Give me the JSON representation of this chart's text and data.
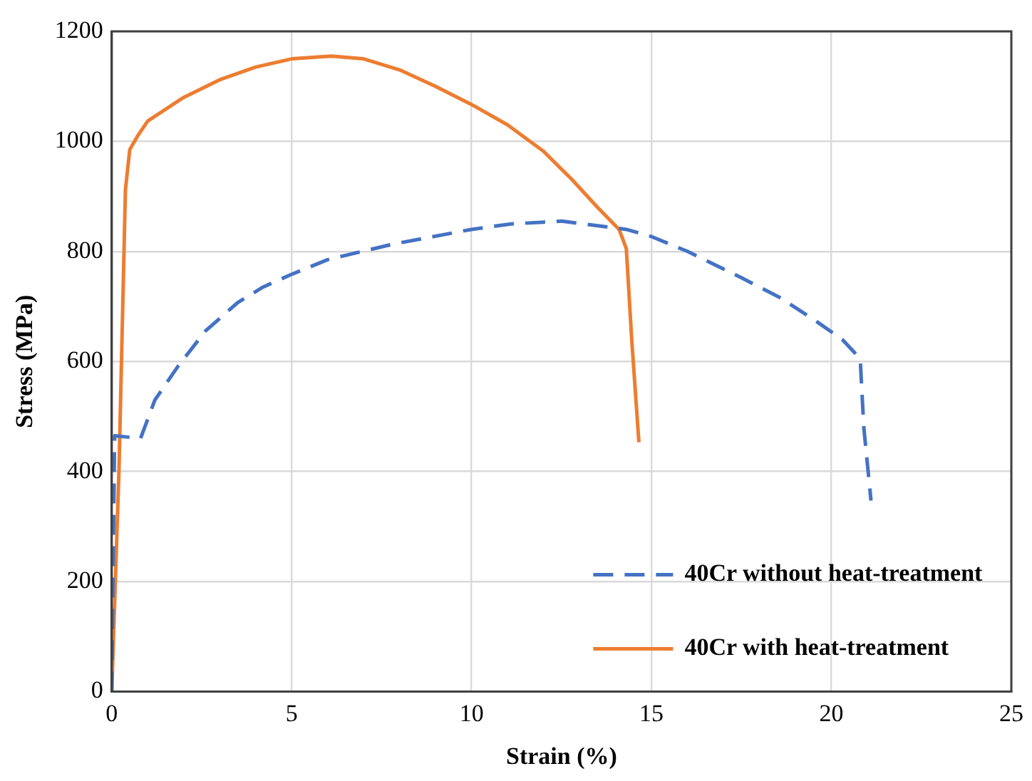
{
  "chart_data": {
    "type": "line",
    "xlabel": "Strain (%)",
    "ylabel": "Stress (MPa)",
    "xlim": [
      0,
      25
    ],
    "xticks": [
      0,
      5,
      10,
      15,
      20,
      25
    ],
    "ylim": [
      0,
      1200
    ],
    "yticks": [
      0,
      200,
      400,
      600,
      800,
      1000,
      1200
    ],
    "grid": true,
    "legend": "bottom right",
    "marker": "none",
    "series": [
      {
        "name": "40Cr without heat-treatment",
        "color": "#4472c4",
        "line_style": "dashed",
        "x": [
          0,
          0.08,
          0.8,
          1.2,
          1.85,
          2.6,
          3.5,
          4.2,
          4.95,
          6,
          7.8,
          10,
          11.1,
          12.5,
          14.3,
          15,
          16,
          17.5,
          18.6,
          19.6,
          20.3,
          20.8,
          20.9,
          21.1
        ],
        "values": [
          0,
          465,
          460,
          530,
          592,
          655,
          707,
          735,
          757,
          785,
          813,
          840,
          850,
          855,
          840,
          827,
          800,
          752,
          715,
          672,
          640,
          605,
          480,
          347
        ]
      },
      {
        "name": "40Cr with heat-treatment",
        "color": "#ed7d31",
        "line_style": "solid",
        "x": [
          0,
          0.2,
          0.38,
          0.5,
          0.72,
          1,
          2,
          3,
          4,
          5,
          6.1,
          7,
          8,
          9,
          10,
          11,
          12,
          12.8,
          13.5,
          14.1,
          14.3,
          14.45,
          14.65
        ],
        "values": [
          0,
          400,
          912,
          985,
          1010,
          1037,
          1080,
          1112,
          1135,
          1150,
          1155,
          1150,
          1130,
          1100,
          1067,
          1030,
          982,
          930,
          880,
          840,
          805,
          640,
          453
        ]
      }
    ]
  }
}
